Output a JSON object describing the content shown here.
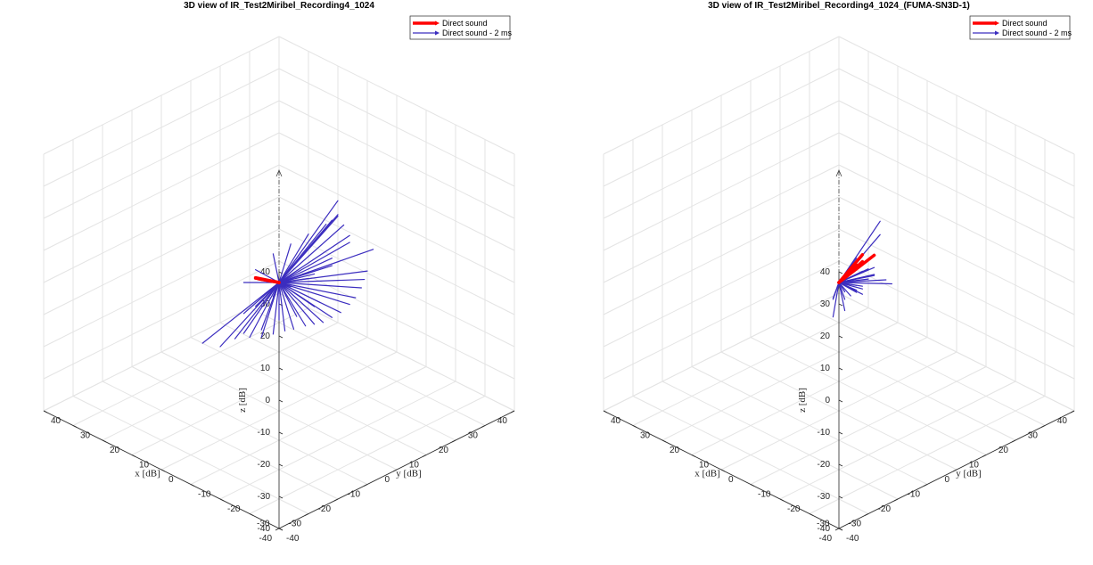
{
  "chart_data": [
    {
      "type": "line",
      "title": "3D view of IR_Test2Miribel_Recording4_1024",
      "xlabel": "x [dB]",
      "ylabel": "y [dB]",
      "zlabel": "z [dB]",
      "xlim": [
        -40,
        40
      ],
      "ylim": [
        -40,
        40
      ],
      "zlim": [
        -40,
        40
      ],
      "ticks": [
        "-40",
        "-30",
        "-20",
        "-10",
        "0",
        "10",
        "20",
        "30",
        "40"
      ],
      "grid": true,
      "view": "isometric",
      "legend_position": "top-right",
      "legend": [
        {
          "name": "Direct sound",
          "color": "#ff0000"
        },
        {
          "name": "Direct sound - 2 ms",
          "color": "#3b2dbf"
        }
      ],
      "reference_arrow": {
        "from": [
          0,
          0,
          0
        ],
        "to": [
          0,
          0,
          35
        ]
      },
      "series": [
        {
          "name": "Direct sound",
          "color": "#ff0000",
          "vectors": [
            [
              24,
              16,
              -17
            ],
            [
              22,
              14,
              -15
            ],
            [
              20,
              13,
              -14
            ]
          ]
        },
        {
          "name": "Direct sound - 2 ms",
          "color": "#3b2dbf",
          "vectors": [
            [
              2,
              32,
              -12
            ],
            [
              4,
              33,
              -16
            ],
            [
              6,
              34,
              -20
            ],
            [
              8,
              34,
              -24
            ],
            [
              10,
              34,
              -27
            ],
            [
              12,
              33,
              -30
            ],
            [
              14,
              32,
              -32
            ],
            [
              16,
              31,
              -34
            ],
            [
              18,
              30,
              -35
            ],
            [
              20,
              29,
              -36
            ],
            [
              22,
              27,
              -37
            ],
            [
              24,
              26,
              -38
            ],
            [
              26,
              24,
              -39
            ],
            [
              28,
              22,
              -40
            ],
            [
              30,
              20,
              -40
            ],
            [
              32,
              17,
              -40
            ],
            [
              6,
              26,
              6
            ],
            [
              10,
              28,
              2
            ],
            [
              14,
              30,
              -2
            ],
            [
              18,
              28,
              -6
            ],
            [
              22,
              26,
              -10
            ],
            [
              26,
              24,
              -14
            ],
            [
              28,
              20,
              -18
            ],
            [
              30,
              18,
              -22
            ],
            [
              8,
              22,
              -20
            ],
            [
              12,
              24,
              -24
            ],
            [
              16,
              22,
              -28
            ],
            [
              20,
              20,
              -30
            ],
            [
              24,
              18,
              -34
            ],
            [
              28,
              16,
              -36
            ],
            [
              -4,
              16,
              20
            ],
            [
              0,
              20,
              12
            ],
            [
              2,
              24,
              6
            ],
            [
              4,
              28,
              0
            ],
            [
              6,
              30,
              -4
            ],
            [
              8,
              26,
              -8
            ],
            [
              10,
              22,
              -12
            ],
            [
              14,
              18,
              -16
            ],
            [
              18,
              16,
              -20
            ],
            [
              22,
              14,
              -24
            ],
            [
              26,
              14,
              -28
            ],
            [
              12,
              30,
              -14
            ],
            [
              16,
              26,
              -18
            ],
            [
              4,
              36,
              -8
            ],
            [
              34,
              14,
              -42
            ],
            [
              36,
              10,
              -40
            ]
          ]
        }
      ]
    },
    {
      "type": "line",
      "title": "3D view of IR_Test2Miribel_Recording4_1024_(FUMA-SN3D-1)",
      "xlabel": "x [dB]",
      "ylabel": "y [dB]",
      "zlabel": "z [dB]",
      "xlim": [
        -40,
        40
      ],
      "ylim": [
        -40,
        40
      ],
      "zlim": [
        -40,
        40
      ],
      "ticks": [
        "-40",
        "-30",
        "-20",
        "-10",
        "0",
        "10",
        "20",
        "30",
        "40"
      ],
      "grid": true,
      "view": "isometric",
      "legend_position": "top-right",
      "legend": [
        {
          "name": "Direct sound",
          "color": "#ff0000"
        },
        {
          "name": "Direct sound - 2 ms",
          "color": "#3b2dbf"
        }
      ],
      "reference_arrow": {
        "from": [
          0,
          0,
          0
        ],
        "to": [
          0,
          0,
          35
        ]
      },
      "series": [
        {
          "name": "Direct sound",
          "color": "#ff0000",
          "vectors": [
            [
              12,
              24,
              -8
            ],
            [
              14,
              22,
              -10
            ],
            [
              16,
              22,
              -12
            ],
            [
              12,
              20,
              -6
            ]
          ]
        },
        {
          "name": "Direct sound - 2 ms",
          "color": "#3b2dbf",
          "vectors": [
            [
              -8,
              6,
              20
            ],
            [
              -6,
              8,
              14
            ],
            [
              -2,
              4,
              6
            ],
            [
              -6,
              2,
              10
            ],
            [
              -10,
              -4,
              14
            ],
            [
              2,
              10,
              -2
            ],
            [
              4,
              14,
              -4
            ],
            [
              6,
              16,
              -6
            ],
            [
              8,
              18,
              -8
            ],
            [
              10,
              22,
              -10
            ],
            [
              12,
              24,
              -14
            ],
            [
              14,
              26,
              -16
            ],
            [
              16,
              28,
              -18
            ],
            [
              18,
              28,
              -20
            ],
            [
              20,
              26,
              -22
            ],
            [
              20,
              28,
              -24
            ],
            [
              22,
              28,
              -26
            ],
            [
              24,
              28,
              -28
            ],
            [
              26,
              28,
              -30
            ],
            [
              28,
              26,
              -30
            ],
            [
              22,
              24,
              -24
            ],
            [
              24,
              22,
              -26
            ],
            [
              18,
              22,
              -20
            ],
            [
              14,
              20,
              -18
            ],
            [
              16,
              24,
              -22
            ],
            [
              20,
              22,
              -28
            ],
            [
              22,
              20,
              -30
            ],
            [
              10,
              18,
              -14
            ],
            [
              6,
              22,
              -12
            ],
            [
              8,
              26,
              -16
            ]
          ]
        }
      ]
    }
  ]
}
